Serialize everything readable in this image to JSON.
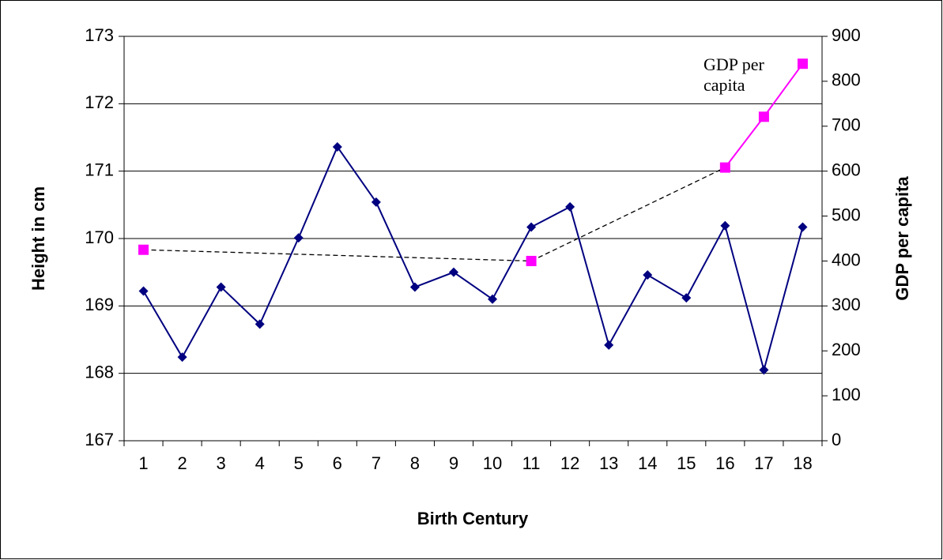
{
  "chart_data": {
    "type": "line",
    "categories": [
      "1",
      "2",
      "3",
      "4",
      "5",
      "6",
      "7",
      "8",
      "9",
      "10",
      "11",
      "12",
      "13",
      "14",
      "15",
      "16",
      "17",
      "18"
    ],
    "x_label": "Birth Century",
    "y_label": "Height in cm",
    "y2_label": "GDP per capita",
    "annotation": [
      "GDP per",
      "capita"
    ],
    "ylim": [
      167,
      173
    ],
    "yticks": [
      167,
      168,
      169,
      170,
      171,
      172,
      173
    ],
    "y2lim": [
      0,
      900
    ],
    "y2ticks": [
      0,
      100,
      200,
      300,
      400,
      500,
      600,
      700,
      800,
      900
    ],
    "grid": true,
    "series": [
      {
        "name": "Height in cm",
        "color": "#000080",
        "marker": "diamond",
        "values": [
          169.22,
          168.24,
          169.28,
          168.73,
          170.01,
          171.36,
          170.54,
          169.28,
          169.5,
          169.1,
          170.17,
          170.47,
          168.42,
          169.46,
          169.12,
          170.19,
          168.05,
          170.17
        ]
      },
      {
        "name": "GDP per capita",
        "color": "#ff00ff",
        "marker": "square",
        "axis": "y2",
        "gap_line": "dashed",
        "values": [
          425,
          null,
          null,
          null,
          null,
          null,
          null,
          null,
          null,
          null,
          400,
          null,
          null,
          null,
          null,
          608,
          721,
          839
        ]
      }
    ]
  }
}
